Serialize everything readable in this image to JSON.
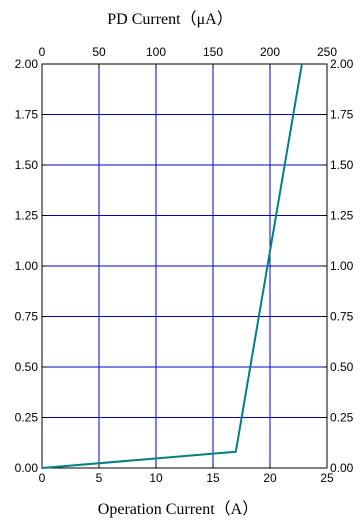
{
  "chart_data": {
    "type": "line",
    "title": "",
    "top_axis": {
      "label": "PD Current（μA）",
      "ticks": [
        0,
        50,
        100,
        150,
        200,
        250
      ],
      "range": [
        0,
        250
      ]
    },
    "bottom_axis": {
      "label": "Operation Current（A）",
      "ticks": [
        0,
        5,
        10,
        15,
        20,
        25
      ],
      "range": [
        0,
        25
      ]
    },
    "y_axis": {
      "label": "",
      "ticks": [
        "0.00",
        "0.25",
        "0.50",
        "0.75",
        "1.00",
        "1.25",
        "1.50",
        "1.75",
        "2.00"
      ],
      "range": [
        0,
        2.0
      ],
      "mirrored_on_right": true
    },
    "grid": true,
    "grid_color": "#0000cc",
    "line_color": "#008080",
    "series": [
      {
        "x": [
          0,
          17,
          22.8
        ],
        "y": [
          0.0,
          0.08,
          2.0
        ]
      }
    ]
  }
}
